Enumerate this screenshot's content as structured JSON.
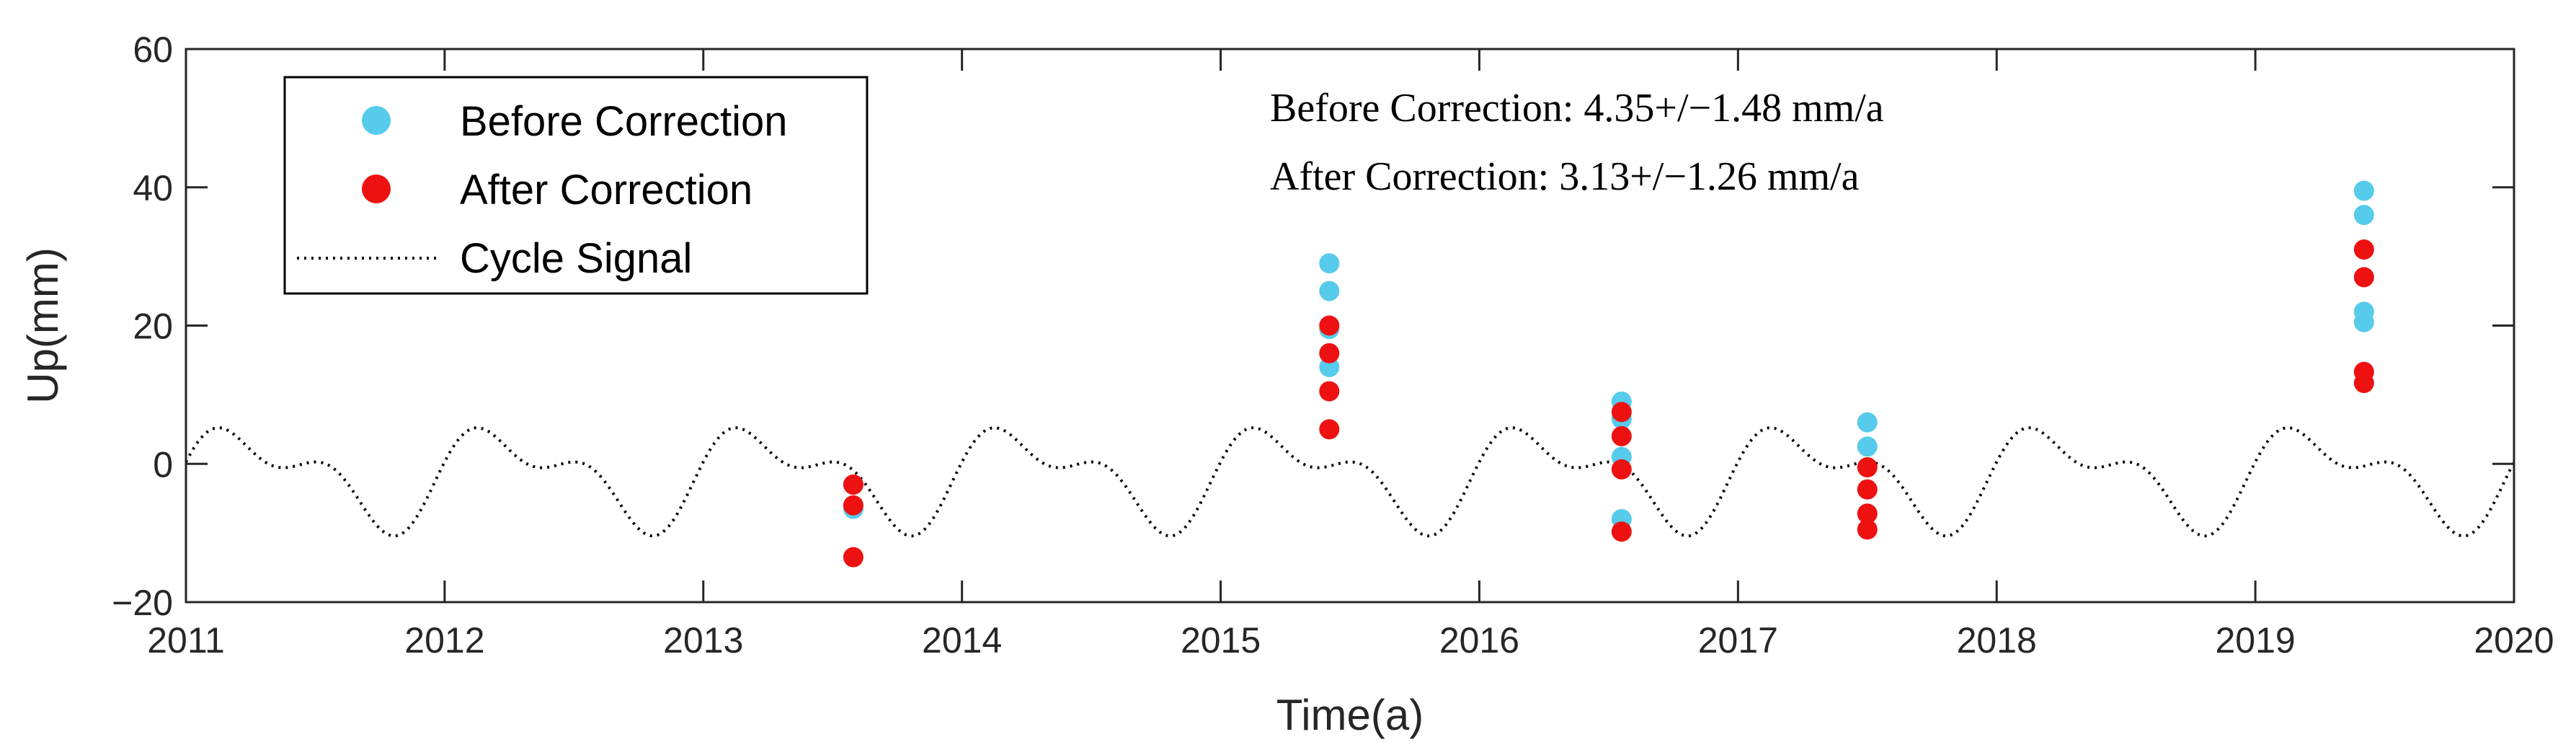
{
  "chart_data": {
    "type": "scatter",
    "xlabel": "Time(a)",
    "ylabel": "Up(mm)",
    "xlim": [
      2011,
      2020
    ],
    "ylim": [
      -20,
      60
    ],
    "xticks": [
      2011,
      2012,
      2013,
      2014,
      2015,
      2016,
      2017,
      2018,
      2019,
      2020
    ],
    "yticks": [
      -20,
      0,
      20,
      40,
      60
    ],
    "ytick_labels": [
      "−20",
      "0",
      "20",
      "40",
      "60"
    ],
    "grid": false,
    "legend_position": "top-left",
    "annotations": [
      "Before Correction: 4.35+/−1.48 mm/a",
      "After Correction: 3.13+/−1.26 mm/a"
    ],
    "series": [
      {
        "name": "Before Correction",
        "color": "#56cbeb",
        "marker": "circle",
        "points": [
          [
            2013.58,
            -3
          ],
          [
            2013.58,
            -6.5
          ],
          [
            2015.42,
            29
          ],
          [
            2015.42,
            25
          ],
          [
            2015.42,
            19.5
          ],
          [
            2015.42,
            14
          ],
          [
            2016.55,
            9
          ],
          [
            2016.55,
            6.5
          ],
          [
            2016.55,
            1
          ],
          [
            2016.55,
            -8
          ],
          [
            2017.5,
            6
          ],
          [
            2017.5,
            2.5
          ],
          [
            2019.42,
            39.5
          ],
          [
            2019.42,
            36
          ],
          [
            2019.42,
            22
          ],
          [
            2019.42,
            20.5
          ]
        ]
      },
      {
        "name": "After Correction",
        "color": "#ee1111",
        "marker": "circle",
        "points": [
          [
            2013.58,
            -3
          ],
          [
            2013.58,
            -6
          ],
          [
            2013.58,
            -13.5
          ],
          [
            2015.42,
            20
          ],
          [
            2015.42,
            16
          ],
          [
            2015.42,
            10.5
          ],
          [
            2015.42,
            5
          ],
          [
            2016.55,
            7.5
          ],
          [
            2016.55,
            4
          ],
          [
            2016.55,
            -0.8
          ],
          [
            2016.55,
            -9.8
          ],
          [
            2017.5,
            -0.5
          ],
          [
            2017.5,
            -3.7
          ],
          [
            2017.5,
            -7.2
          ],
          [
            2017.5,
            -9.5
          ],
          [
            2019.42,
            31
          ],
          [
            2019.42,
            27
          ],
          [
            2019.42,
            13.3
          ],
          [
            2019.42,
            11.7
          ]
        ]
      },
      {
        "name": "Cycle Signal",
        "color": "#000000",
        "line_style": "dotted",
        "function": "5.7*sin(2*pi*(t-2011)) + 3.5*sin(4*pi*(t-2011) + 0.6) - 1.7",
        "t_range": [
          2011,
          2020
        ]
      }
    ]
  }
}
